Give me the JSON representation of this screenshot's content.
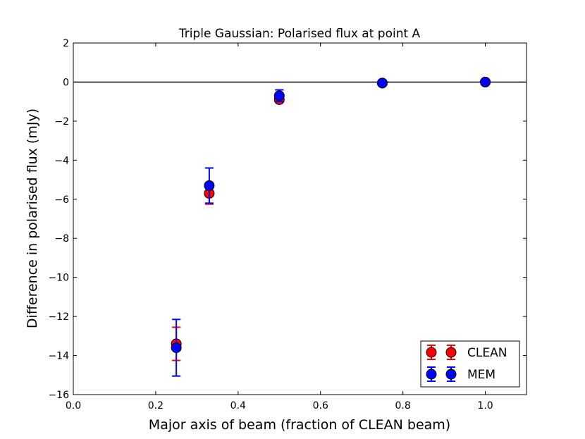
{
  "chart_data": {
    "type": "scatter",
    "title": "Triple Gaussian: Polarised flux at point A",
    "xlabel": "Major axis of beam (fraction of CLEAN beam)",
    "ylabel": "Difference in polarised flux (mJy)",
    "xlim": [
      0.0,
      1.1
    ],
    "ylim": [
      -16,
      2
    ],
    "x_ticks": [
      0.0,
      0.2,
      0.4,
      0.6,
      0.8,
      1.0
    ],
    "x_tick_labels": [
      "0.0",
      "0.2",
      "0.4",
      "0.6",
      "0.8",
      "1.0"
    ],
    "y_ticks": [
      2,
      0,
      -2,
      -4,
      -6,
      -8,
      -10,
      -12,
      -14,
      -16
    ],
    "y_tick_labels": [
      "2",
      "0",
      "−2",
      "−4",
      "−6",
      "−8",
      "−10",
      "−12",
      "−14",
      "−16"
    ],
    "grid": false,
    "legend_position": "lower right",
    "reference_line_y": 0,
    "series": [
      {
        "name": "CLEAN",
        "color": "#ff0000",
        "points": [
          {
            "x": 0.25,
            "y": -13.4,
            "err": 0.85
          },
          {
            "x": 0.33,
            "y": -5.7,
            "err": 0.55
          },
          {
            "x": 0.5,
            "y": -0.9,
            "err": 0.15
          },
          {
            "x": 0.75,
            "y": -0.05,
            "err": 0.0
          },
          {
            "x": 1.0,
            "y": 0.0,
            "err": 0.0
          }
        ]
      },
      {
        "name": "MEM",
        "color": "#0000ff",
        "points": [
          {
            "x": 0.25,
            "y": -13.6,
            "err": 1.45
          },
          {
            "x": 0.33,
            "y": -5.3,
            "err": 0.9
          },
          {
            "x": 0.5,
            "y": -0.7,
            "err": 0.3
          },
          {
            "x": 0.75,
            "y": -0.05,
            "err": 0.0
          },
          {
            "x": 1.0,
            "y": 0.0,
            "err": 0.0
          }
        ]
      }
    ]
  }
}
